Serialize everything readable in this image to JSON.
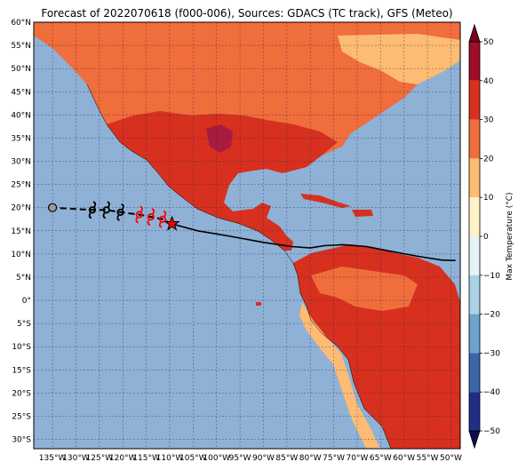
{
  "title": "Forecast of 2022070618 (f000-006), Sources: GDACS (TC track), GFS (Meteo)",
  "map": {
    "lon_range": [
      -139,
      -48
    ],
    "lat_range": [
      -32,
      60
    ],
    "lat_ticks": [
      {
        "value": 60,
        "label": "60°N"
      },
      {
        "value": 55,
        "label": "55°N"
      },
      {
        "value": 50,
        "label": "50°N"
      },
      {
        "value": 45,
        "label": "45°N"
      },
      {
        "value": 40,
        "label": "40°N"
      },
      {
        "value": 35,
        "label": "35°N"
      },
      {
        "value": 30,
        "label": "30°N"
      },
      {
        "value": 25,
        "label": "25°N"
      },
      {
        "value": 20,
        "label": "20°N"
      },
      {
        "value": 15,
        "label": "15°N"
      },
      {
        "value": 10,
        "label": "10°N"
      },
      {
        "value": 5,
        "label": "5°N"
      },
      {
        "value": 0,
        "label": "0°"
      },
      {
        "value": -5,
        "label": "5°S"
      },
      {
        "value": -10,
        "label": "10°S"
      },
      {
        "value": -15,
        "label": "15°S"
      },
      {
        "value": -20,
        "label": "20°S"
      },
      {
        "value": -25,
        "label": "25°S"
      },
      {
        "value": -30,
        "label": "30°S"
      }
    ],
    "lon_ticks": [
      {
        "value": -135,
        "label": "135°W"
      },
      {
        "value": -130,
        "label": "130°W"
      },
      {
        "value": -125,
        "label": "125°W"
      },
      {
        "value": -120,
        "label": "120°W"
      },
      {
        "value": -115,
        "label": "115°W"
      },
      {
        "value": -110,
        "label": "110°W"
      },
      {
        "value": -105,
        "label": "105°W"
      },
      {
        "value": -100,
        "label": "100°W"
      },
      {
        "value": -95,
        "label": "95°W"
      },
      {
        "value": -90,
        "label": "90°W"
      },
      {
        "value": -85,
        "label": "85°W"
      },
      {
        "value": -80,
        "label": "80°W"
      },
      {
        "value": -75,
        "label": "75°W"
      },
      {
        "value": -70,
        "label": "70°W"
      },
      {
        "value": -65,
        "label": "65°W"
      },
      {
        "value": -60,
        "label": "60°W"
      },
      {
        "value": -55,
        "label": "55°W"
      },
      {
        "value": -50,
        "label": "50°W"
      }
    ],
    "colors": {
      "ocean": "#8fb1d6",
      "land_hot": "#d7301f",
      "land_warm": "#f06d3c",
      "land_mild": "#fdbb73",
      "land_very_hot": "#a81b3c",
      "gridline": "#1a2a5a",
      "track": "#000000",
      "storm_observed": "#ff0000",
      "storm_forecast": "#000000"
    }
  },
  "track": {
    "past_points": [
      [
        -109.5,
        16.5
      ]
    ],
    "observed_storm_points": [
      [
        -111.5,
        17.5
      ],
      [
        -114,
        18
      ],
      [
        -116.5,
        18.5
      ]
    ],
    "forecast_storm_points": [
      [
        -120.5,
        19
      ],
      [
        -123.5,
        19.5
      ],
      [
        -126.5,
        19.5
      ]
    ],
    "forecast_end_point": [
      -135,
      20
    ],
    "current_position": [
      -109.5,
      16.5
    ],
    "path": [
      [
        -109.5,
        16.5
      ],
      [
        -104,
        15
      ],
      [
        -97,
        13.8
      ],
      [
        -90,
        12.5
      ],
      [
        -84,
        11.6
      ],
      [
        -80,
        11.3
      ],
      [
        -77,
        11.8
      ],
      [
        -73,
        12
      ],
      [
        -68,
        11.6
      ],
      [
        -63,
        10.6
      ],
      [
        -57,
        9.5
      ],
      [
        -52,
        8.7
      ],
      [
        -49,
        8.6
      ]
    ]
  },
  "colorbar": {
    "label": "Max Temperature (°C)",
    "ticks": [
      {
        "value": 50,
        "label": "50"
      },
      {
        "value": 40,
        "label": "40"
      },
      {
        "value": 30,
        "label": "30"
      },
      {
        "value": 20,
        "label": "20"
      },
      {
        "value": 10,
        "label": "10"
      },
      {
        "value": 0,
        "label": "0"
      },
      {
        "value": -10,
        "label": "−10"
      },
      {
        "value": -20,
        "label": "−20"
      },
      {
        "value": -30,
        "label": "−30"
      },
      {
        "value": -40,
        "label": "−40"
      },
      {
        "value": -50,
        "label": "−50"
      }
    ],
    "bands": [
      {
        "from": 40,
        "to": 50,
        "color": "#9e0d2a"
      },
      {
        "from": 30,
        "to": 40,
        "color": "#d7301f"
      },
      {
        "from": 20,
        "to": 30,
        "color": "#f06d3c"
      },
      {
        "from": 10,
        "to": 20,
        "color": "#fdbb73"
      },
      {
        "from": 0,
        "to": 10,
        "color": "#fef2c8"
      },
      {
        "from": -10,
        "to": 0,
        "color": "#e6f3f8"
      },
      {
        "from": -20,
        "to": -10,
        "color": "#a9d2e6"
      },
      {
        "from": -30,
        "to": -20,
        "color": "#6ba3cc"
      },
      {
        "from": -40,
        "to": -30,
        "color": "#3968a8"
      },
      {
        "from": -50,
        "to": -40,
        "color": "#1f2f86"
      }
    ],
    "extend_max_color": "#7b0021",
    "extend_min_color": "#0d0d50"
  }
}
